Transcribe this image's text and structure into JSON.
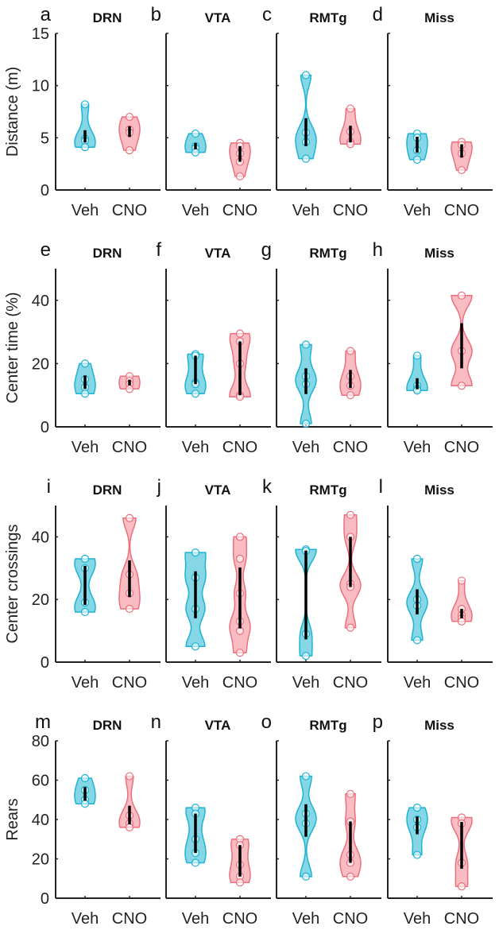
{
  "chart_data": {
    "type": "violin",
    "colors": {
      "Veh_fill": "#5cc9dc",
      "Veh_stroke": "#1db3d3",
      "CNO_fill": "#f6a5ad",
      "CNO_stroke": "#ec6f7c"
    },
    "categories": [
      "Veh",
      "CNO"
    ],
    "rows": [
      {
        "ylabel": "Distance (m)",
        "ylim": [
          0,
          15
        ],
        "yticks": [
          0,
          5,
          10,
          15
        ]
      },
      {
        "ylabel": "Center time (%)",
        "ylim": [
          0,
          50
        ],
        "yticks": [
          0,
          20,
          40
        ]
      },
      {
        "ylabel": "Center crossings",
        "ylim": [
          0,
          50
        ],
        "yticks": [
          0,
          20,
          40
        ]
      },
      {
        "ylabel": "Rears",
        "ylim": [
          0,
          80
        ],
        "yticks": [
          0,
          20,
          40,
          60,
          80
        ]
      }
    ],
    "panels": [
      {
        "letter": "a",
        "title": "DRN",
        "row": 0,
        "col": 0,
        "Veh": [
          8.2,
          4.9,
          4.7,
          4.1
        ],
        "CNO": [
          7.0,
          5.8,
          5.5,
          3.8
        ]
      },
      {
        "letter": "b",
        "title": "VTA",
        "row": 0,
        "col": 1,
        "Veh": [
          5.4,
          4.2,
          4.0,
          3.6
        ],
        "CNO": [
          4.5,
          4.2,
          3.5,
          2.7,
          1.3
        ]
      },
      {
        "letter": "c",
        "title": "RMTg",
        "row": 0,
        "col": 2,
        "Veh": [
          11.0,
          5.5,
          4.6,
          3.0
        ],
        "CNO": [
          7.8,
          5.6,
          4.6,
          4.4
        ]
      },
      {
        "letter": "d",
        "title": "Miss",
        "row": 0,
        "col": 3,
        "Veh": [
          5.4,
          5.0,
          3.8,
          2.9
        ],
        "CNO": [
          4.6,
          4.3,
          3.5,
          1.9
        ]
      },
      {
        "letter": "e",
        "title": "DRN",
        "row": 1,
        "col": 0,
        "Veh": [
          20,
          15,
          12.5,
          10.5
        ],
        "CNO": [
          16,
          14.5,
          13.5,
          12
        ]
      },
      {
        "letter": "f",
        "title": "VTA",
        "row": 1,
        "col": 1,
        "Veh": [
          23,
          22.5,
          14,
          13.5,
          10.5
        ],
        "CNO": [
          29.5,
          27,
          20,
          10,
          9.5
        ]
      },
      {
        "letter": "g",
        "title": "RMTg",
        "row": 1,
        "col": 2,
        "Veh": [
          26,
          16,
          13.5,
          1
        ],
        "CNO": [
          24,
          16,
          13,
          10
        ]
      },
      {
        "letter": "h",
        "title": "Miss",
        "row": 1,
        "col": 3,
        "Veh": [
          22.5,
          13,
          12,
          11.5
        ],
        "CNO": [
          41.5,
          24,
          13
        ]
      },
      {
        "letter": "i",
        "title": "DRN",
        "row": 2,
        "col": 0,
        "Veh": [
          33,
          30,
          19,
          16
        ],
        "CNO": [
          46,
          28,
          22,
          17
        ]
      },
      {
        "letter": "j",
        "title": "VTA",
        "row": 2,
        "col": 1,
        "Veh": [
          35,
          27,
          17,
          5
        ],
        "CNO": [
          40,
          33,
          22,
          13,
          10,
          3
        ]
      },
      {
        "letter": "k",
        "title": "RMTg",
        "row": 2,
        "col": 2,
        "Veh": [
          36,
          35.5,
          9,
          2
        ],
        "CNO": [
          47,
          40,
          25,
          24,
          11
        ]
      },
      {
        "letter": "l",
        "title": "Miss",
        "row": 2,
        "col": 3,
        "Veh": [
          33,
          20,
          18,
          7
        ],
        "CNO": [
          26,
          17,
          15,
          14,
          13
        ]
      },
      {
        "letter": "m",
        "title": "DRN",
        "row": 3,
        "col": 0,
        "Veh": [
          61,
          55,
          50,
          48
        ],
        "CNO": [
          62,
          42,
          38,
          36
        ]
      },
      {
        "letter": "n",
        "title": "VTA",
        "row": 3,
        "col": 1,
        "Veh": [
          46,
          43,
          30,
          23,
          18
        ],
        "CNO": [
          30,
          27,
          17,
          11,
          8
        ]
      },
      {
        "letter": "o",
        "title": "RMTg",
        "row": 3,
        "col": 2,
        "Veh": [
          62,
          43,
          38,
          11
        ],
        "CNO": [
          53,
          39,
          22,
          18,
          11
        ]
      },
      {
        "letter": "p",
        "title": "Miss",
        "row": 3,
        "col": 3,
        "Veh": [
          46,
          40,
          36,
          22
        ],
        "CNO": [
          41,
          38,
          18,
          6
        ]
      }
    ]
  }
}
